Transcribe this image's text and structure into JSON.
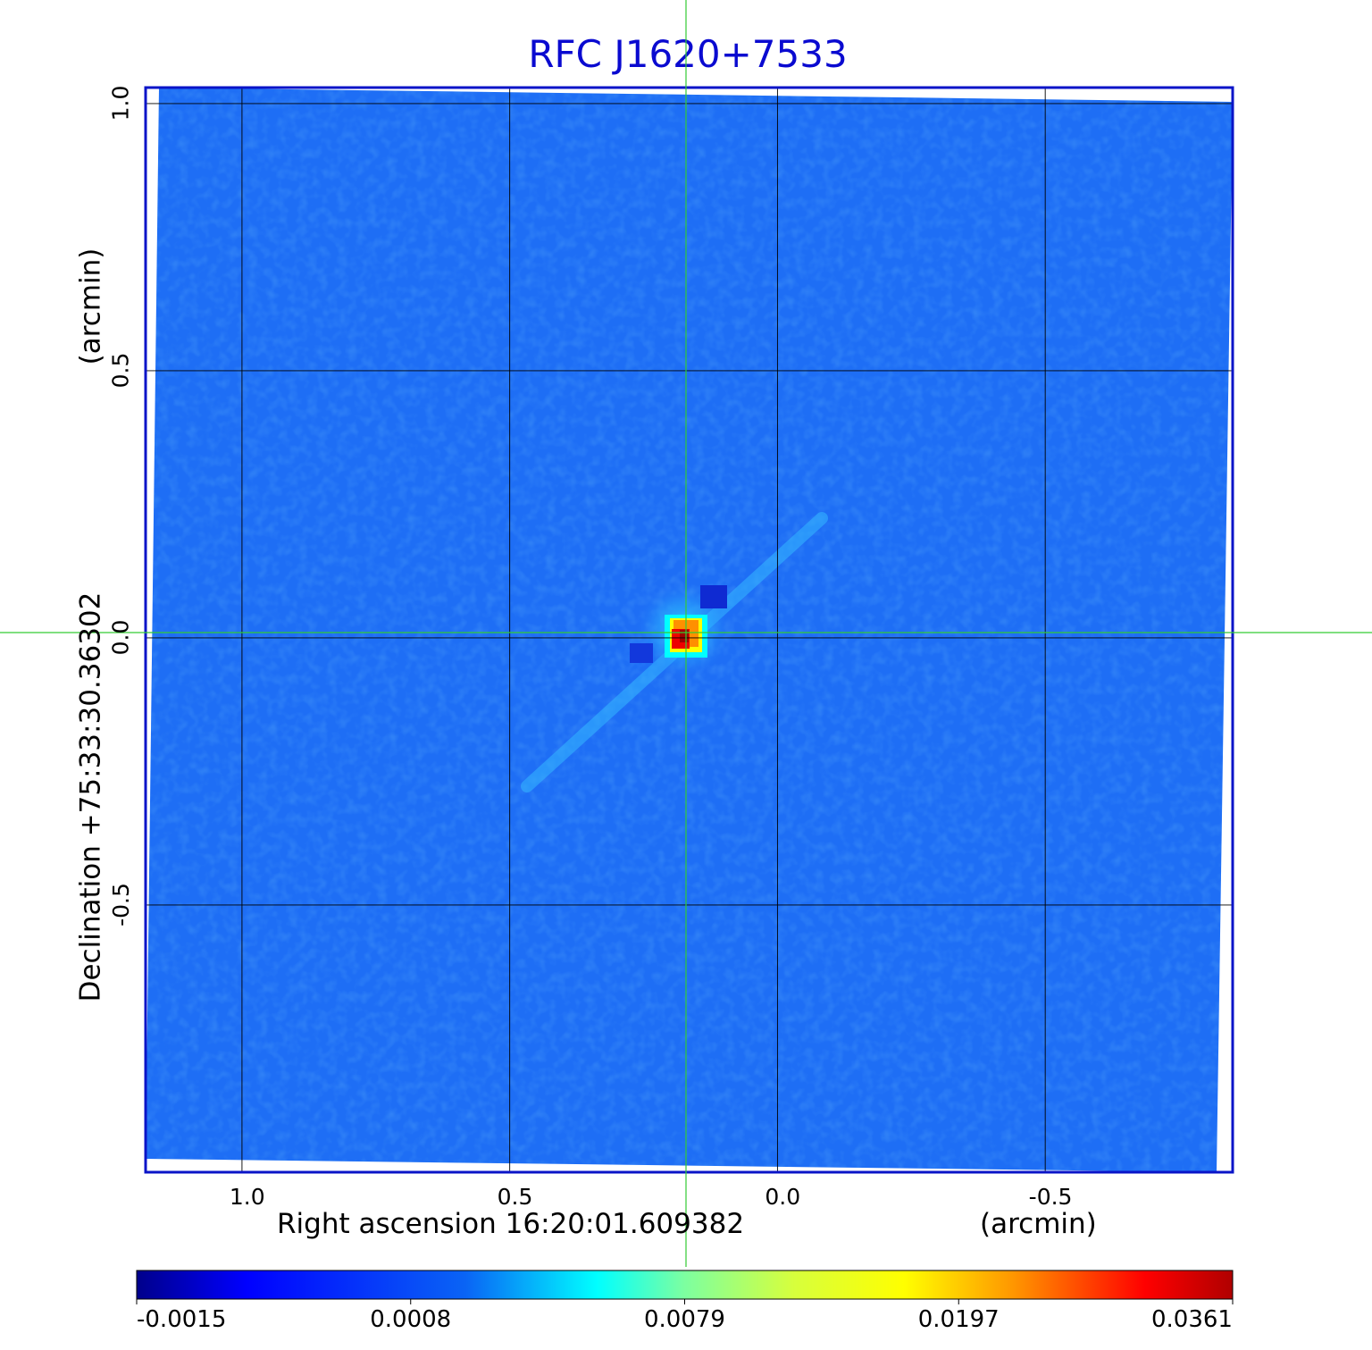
{
  "chart_data": {
    "type": "heatmap",
    "title": "RFC J1620+7533",
    "xlabel": "Right ascension  16:20:01.609382",
    "xlabel_unit": "(arcmin)",
    "ylabel": "Declination  +75:33:30.36302",
    "ylabel_unit": "(arcmin)",
    "x_ticks": [
      "1.0",
      "0.5",
      "0.0",
      "-0.5"
    ],
    "x_tick_values": [
      1.0,
      0.5,
      0.0,
      -0.5
    ],
    "y_ticks": [
      "1.0",
      "0.5",
      "0.0",
      "-0.5"
    ],
    "y_tick_values": [
      1.0,
      0.5,
      0.0,
      -0.5
    ],
    "xlim": [
      1.18,
      -0.85
    ],
    "ylim": [
      -1.0,
      1.03
    ],
    "grid": true,
    "source": {
      "x": 0.18,
      "y": 0.0,
      "peak": 0.0361
    },
    "colorbar": {
      "colormap": "jet",
      "tick_labels": [
        "-0.0015",
        "0.0008",
        "0.0079",
        "0.0197",
        "0.0361"
      ],
      "tick_values": [
        -0.0015,
        0.0008,
        0.0079,
        0.0197,
        0.0361
      ]
    },
    "crosshair_color": "#33cc33",
    "frame_color": "#0a14c8",
    "background_color": "#1e6ef5"
  }
}
